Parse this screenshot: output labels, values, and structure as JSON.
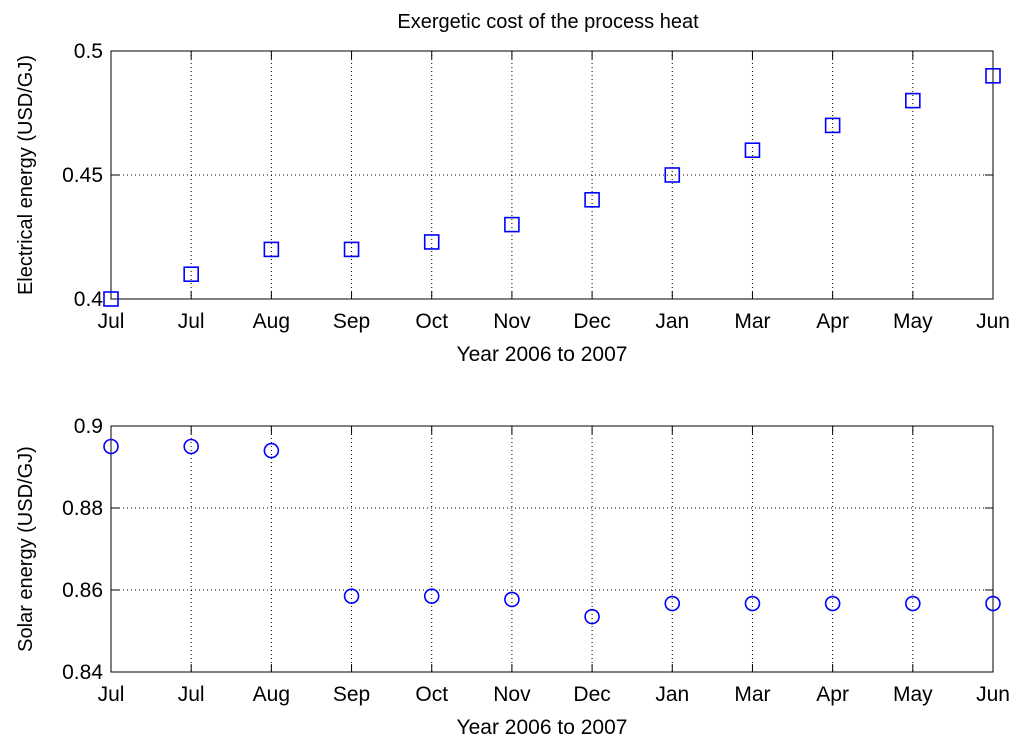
{
  "figure": {
    "title": "Exergetic cost of the process heat"
  },
  "chart_data": [
    {
      "type": "scatter",
      "marker": "square",
      "color": "#0000ff",
      "title": "Exergetic cost of the process heat",
      "xlabel": "Year 2006 to 2007",
      "ylabel": "Electrical energy (USD/GJ)",
      "categories": [
        "Jul",
        "Jul",
        "Aug",
        "Sep",
        "Oct",
        "Nov",
        "Dec",
        "Jan",
        "Mar",
        "Apr",
        "May",
        "Jun"
      ],
      "values": [
        0.4,
        0.41,
        0.42,
        0.42,
        0.423,
        0.43,
        0.44,
        0.45,
        0.46,
        0.47,
        0.48,
        0.49
      ],
      "ylim": [
        0.4,
        0.5
      ],
      "yticks": [
        0.4,
        0.45,
        0.5
      ],
      "ytick_labels": [
        "0.4",
        "0.45",
        "0.5"
      ],
      "grid": true
    },
    {
      "type": "scatter",
      "marker": "circle",
      "color": "#0000ff",
      "title": "",
      "xlabel": "Year 2006 to 2007",
      "ylabel": "Solar energy (USD/GJ)",
      "categories": [
        "Jul",
        "Jul",
        "Aug",
        "Sep",
        "Oct",
        "Nov",
        "Dec",
        "Jan",
        "Mar",
        "Apr",
        "May",
        "Jun"
      ],
      "values": [
        0.895,
        0.895,
        0.894,
        0.8585,
        0.8585,
        0.8577,
        0.8535,
        0.8567,
        0.8567,
        0.8567,
        0.8567,
        0.8567
      ],
      "ylim": [
        0.84,
        0.9
      ],
      "yticks": [
        0.84,
        0.86,
        0.88,
        0.9
      ],
      "ytick_labels": [
        "0.84",
        "0.86",
        "0.88",
        "0.9"
      ],
      "grid": true
    }
  ]
}
